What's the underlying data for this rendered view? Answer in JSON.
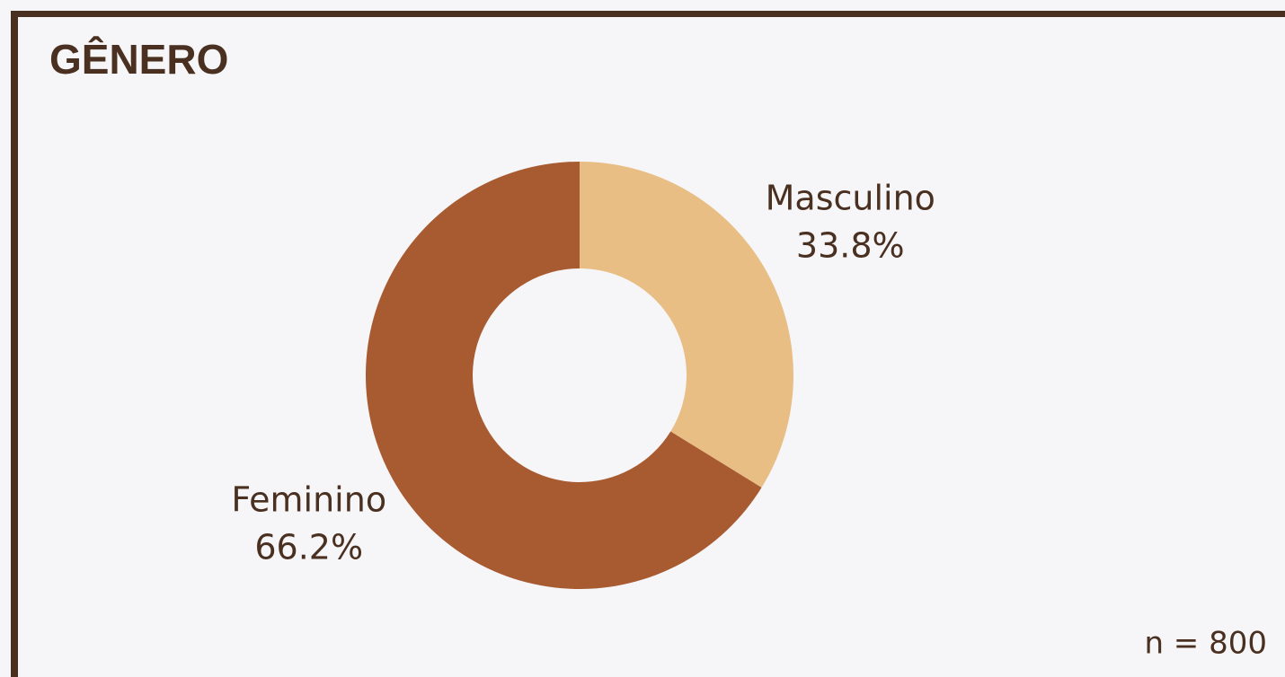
{
  "chart_data": {
    "type": "donut",
    "title": "GÊNERO",
    "categories": [
      "Masculino",
      "Feminino"
    ],
    "values": [
      33.8,
      66.2
    ],
    "value_labels": [
      "33.8%",
      "66.2%"
    ],
    "colors": [
      "#e8be84",
      "#a85a30"
    ],
    "note": "n = 800"
  }
}
